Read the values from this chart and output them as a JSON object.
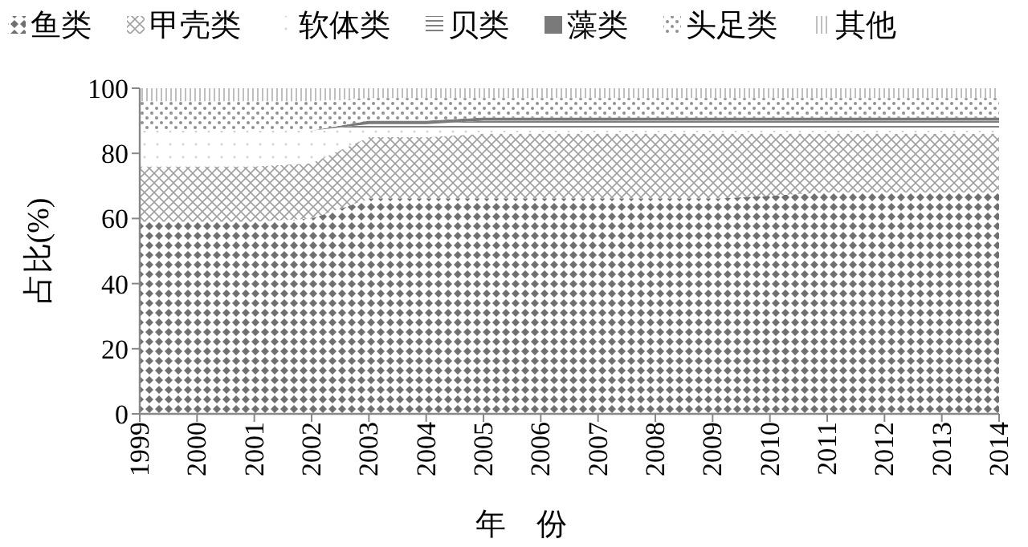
{
  "chart_data": {
    "type": "area",
    "stacked": true,
    "ylabel": "占比(%)",
    "xlabel": "年　份",
    "legend": "top",
    "grid": false,
    "categories": [
      "1999",
      "2000",
      "2001",
      "2002",
      "2003",
      "2004",
      "2005",
      "2006",
      "2007",
      "2008",
      "2009",
      "2010",
      "2011",
      "2012",
      "2013",
      "2014"
    ],
    "ylim": [
      0,
      100
    ],
    "yticks": [
      0,
      20,
      40,
      60,
      80,
      100
    ],
    "series": [
      {
        "name": "鱼类",
        "color": "#707070",
        "values": [
          59,
          59,
          59,
          60,
          66,
          66,
          66,
          66,
          66,
          66,
          66,
          67,
          68,
          68,
          68,
          68
        ]
      },
      {
        "name": "甲壳类",
        "color": "#a0a0a0",
        "values": [
          17,
          17,
          17,
          17,
          19,
          19,
          20,
          20,
          20,
          20,
          20,
          19,
          18,
          18,
          18,
          18
        ]
      },
      {
        "name": "软体类",
        "color": "#d0d0d0",
        "values": [
          11,
          11,
          11,
          10,
          2,
          2,
          1,
          1,
          1,
          1,
          1,
          1,
          1,
          1,
          1,
          1
        ]
      },
      {
        "name": "贝类",
        "color": "#808080",
        "values": [
          0,
          0,
          0,
          0,
          2,
          2,
          3,
          3,
          3,
          3,
          3,
          3,
          3,
          3,
          3,
          3
        ]
      },
      {
        "name": "藻类",
        "color": "#7a7a7a",
        "values": [
          0,
          0,
          0,
          0,
          1,
          1,
          1,
          1,
          1,
          1,
          1,
          1,
          1,
          1,
          1,
          1
        ]
      },
      {
        "name": "头足类",
        "color": "#909090",
        "values": [
          9,
          9,
          9,
          9,
          7,
          7,
          6,
          6,
          6,
          6,
          6,
          6,
          6,
          6,
          6,
          6
        ]
      },
      {
        "name": "其他",
        "color": "#b0b0b0",
        "values": [
          4,
          4,
          4,
          4,
          3,
          3,
          3,
          3,
          3,
          3,
          3,
          3,
          3,
          3,
          3,
          3
        ]
      }
    ]
  }
}
